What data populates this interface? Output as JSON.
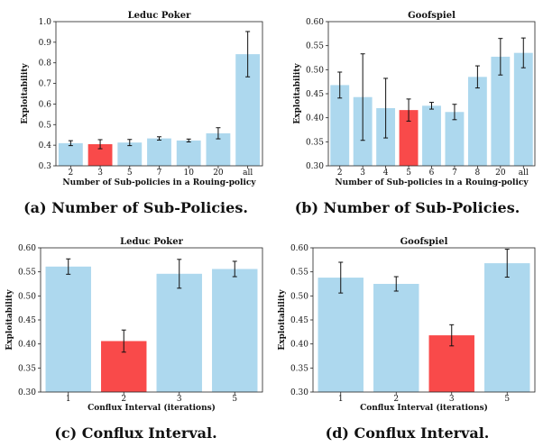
{
  "colors": {
    "bar": "#add8ee",
    "highlight": "#f94a4a",
    "error": "#111111",
    "axis": "#222222"
  },
  "chart_data": [
    {
      "type": "bar",
      "title": "Leduc Poker",
      "xlabel": "Number of Sub-policies in a Rouing-policy",
      "ylabel": "Exploitability",
      "ylim": [
        0.3,
        1.0
      ],
      "yticks": [
        0.3,
        0.4,
        0.5,
        0.6,
        0.7,
        0.8,
        0.9,
        1.0
      ],
      "ytick_labels": [
        "0.3",
        "0.4",
        "0.5",
        "0.6",
        "0.7",
        "0.8",
        "0.9",
        "1.0"
      ],
      "categories": [
        "2",
        "3",
        "5",
        "7",
        "10",
        "20",
        "all"
      ],
      "values": [
        0.41,
        0.405,
        0.413,
        0.433,
        0.423,
        0.458,
        0.842
      ],
      "errors": [
        0.012,
        0.022,
        0.015,
        0.008,
        0.007,
        0.027,
        0.11
      ],
      "highlight_index": 1,
      "caption": "(a) Number of Sub-Policies."
    },
    {
      "type": "bar",
      "title": "Goofspiel",
      "xlabel": "Number of Sub-policies in a Rouing-policy",
      "ylabel": "Exploitability",
      "ylim": [
        0.3,
        0.6
      ],
      "yticks": [
        0.3,
        0.35,
        0.4,
        0.45,
        0.5,
        0.55,
        0.6
      ],
      "ytick_labels": [
        "0.30",
        "0.35",
        "0.40",
        "0.45",
        "0.50",
        "0.55",
        "0.60"
      ],
      "categories": [
        "2",
        "3",
        "4",
        "5",
        "6",
        "7",
        "8",
        "20",
        "all"
      ],
      "values": [
        0.468,
        0.443,
        0.42,
        0.416,
        0.425,
        0.412,
        0.485,
        0.527,
        0.535
      ],
      "errors": [
        0.027,
        0.09,
        0.062,
        0.023,
        0.007,
        0.016,
        0.023,
        0.038,
        0.031
      ],
      "highlight_index": 3,
      "caption": "(b) Number of Sub-Policies."
    },
    {
      "type": "bar",
      "title": "Leduc Poker",
      "xlabel": "Conflux Interval (iterations)",
      "ylabel": "Exploitability",
      "ylim": [
        0.3,
        0.6
      ],
      "yticks": [
        0.3,
        0.35,
        0.4,
        0.45,
        0.5,
        0.55,
        0.6
      ],
      "ytick_labels": [
        "0.30",
        "0.35",
        "0.40",
        "0.45",
        "0.50",
        "0.55",
        "0.60"
      ],
      "categories": [
        "1",
        "2",
        "3",
        "5"
      ],
      "values": [
        0.561,
        0.406,
        0.546,
        0.556
      ],
      "errors": [
        0.016,
        0.023,
        0.03,
        0.016
      ],
      "highlight_index": 1,
      "caption": "(c) Conflux Interval."
    },
    {
      "type": "bar",
      "title": "Goofspiel",
      "xlabel": "Conflux Interval (iterations)",
      "ylabel": "Exploitability",
      "ylim": [
        0.3,
        0.6
      ],
      "yticks": [
        0.3,
        0.35,
        0.4,
        0.45,
        0.5,
        0.55,
        0.6
      ],
      "ytick_labels": [
        "0.30",
        "0.35",
        "0.40",
        "0.45",
        "0.50",
        "0.55",
        "0.60"
      ],
      "categories": [
        "1",
        "2",
        "3",
        "5"
      ],
      "values": [
        0.538,
        0.525,
        0.418,
        0.568
      ],
      "errors": [
        0.032,
        0.015,
        0.022,
        0.029
      ],
      "highlight_index": 2,
      "caption": "(d) Conflux Interval."
    }
  ]
}
